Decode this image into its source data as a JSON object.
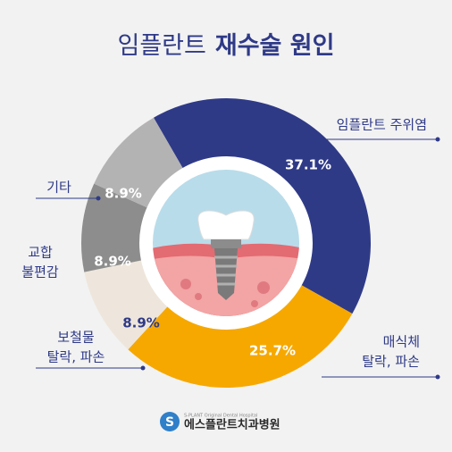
{
  "chart_data": {
    "type": "donut",
    "title_parts": [
      "임플란트",
      "재수술 원인"
    ],
    "categories": [
      [
        "임플란트 주위염"
      ],
      [
        "매식체",
        "탈락, 파손"
      ],
      [
        "보철물",
        "탈락, 파손"
      ],
      [
        "교합",
        "불편감"
      ],
      [
        "기타"
      ]
    ],
    "values": [
      37.1,
      25.7,
      8.9,
      8.9,
      8.9
    ],
    "value_labels": [
      "37.1%",
      "25.7%",
      "8.9%",
      "8.9%",
      "8.9%"
    ],
    "colors": [
      "#2f3a87",
      "#f6a800",
      "#eee6dc",
      "#8d8d8d",
      "#b3b3b3"
    ]
  },
  "logo": {
    "subtitle": "S-PLANT Original Dental Hospital",
    "name": "에스플란트치과병원"
  }
}
